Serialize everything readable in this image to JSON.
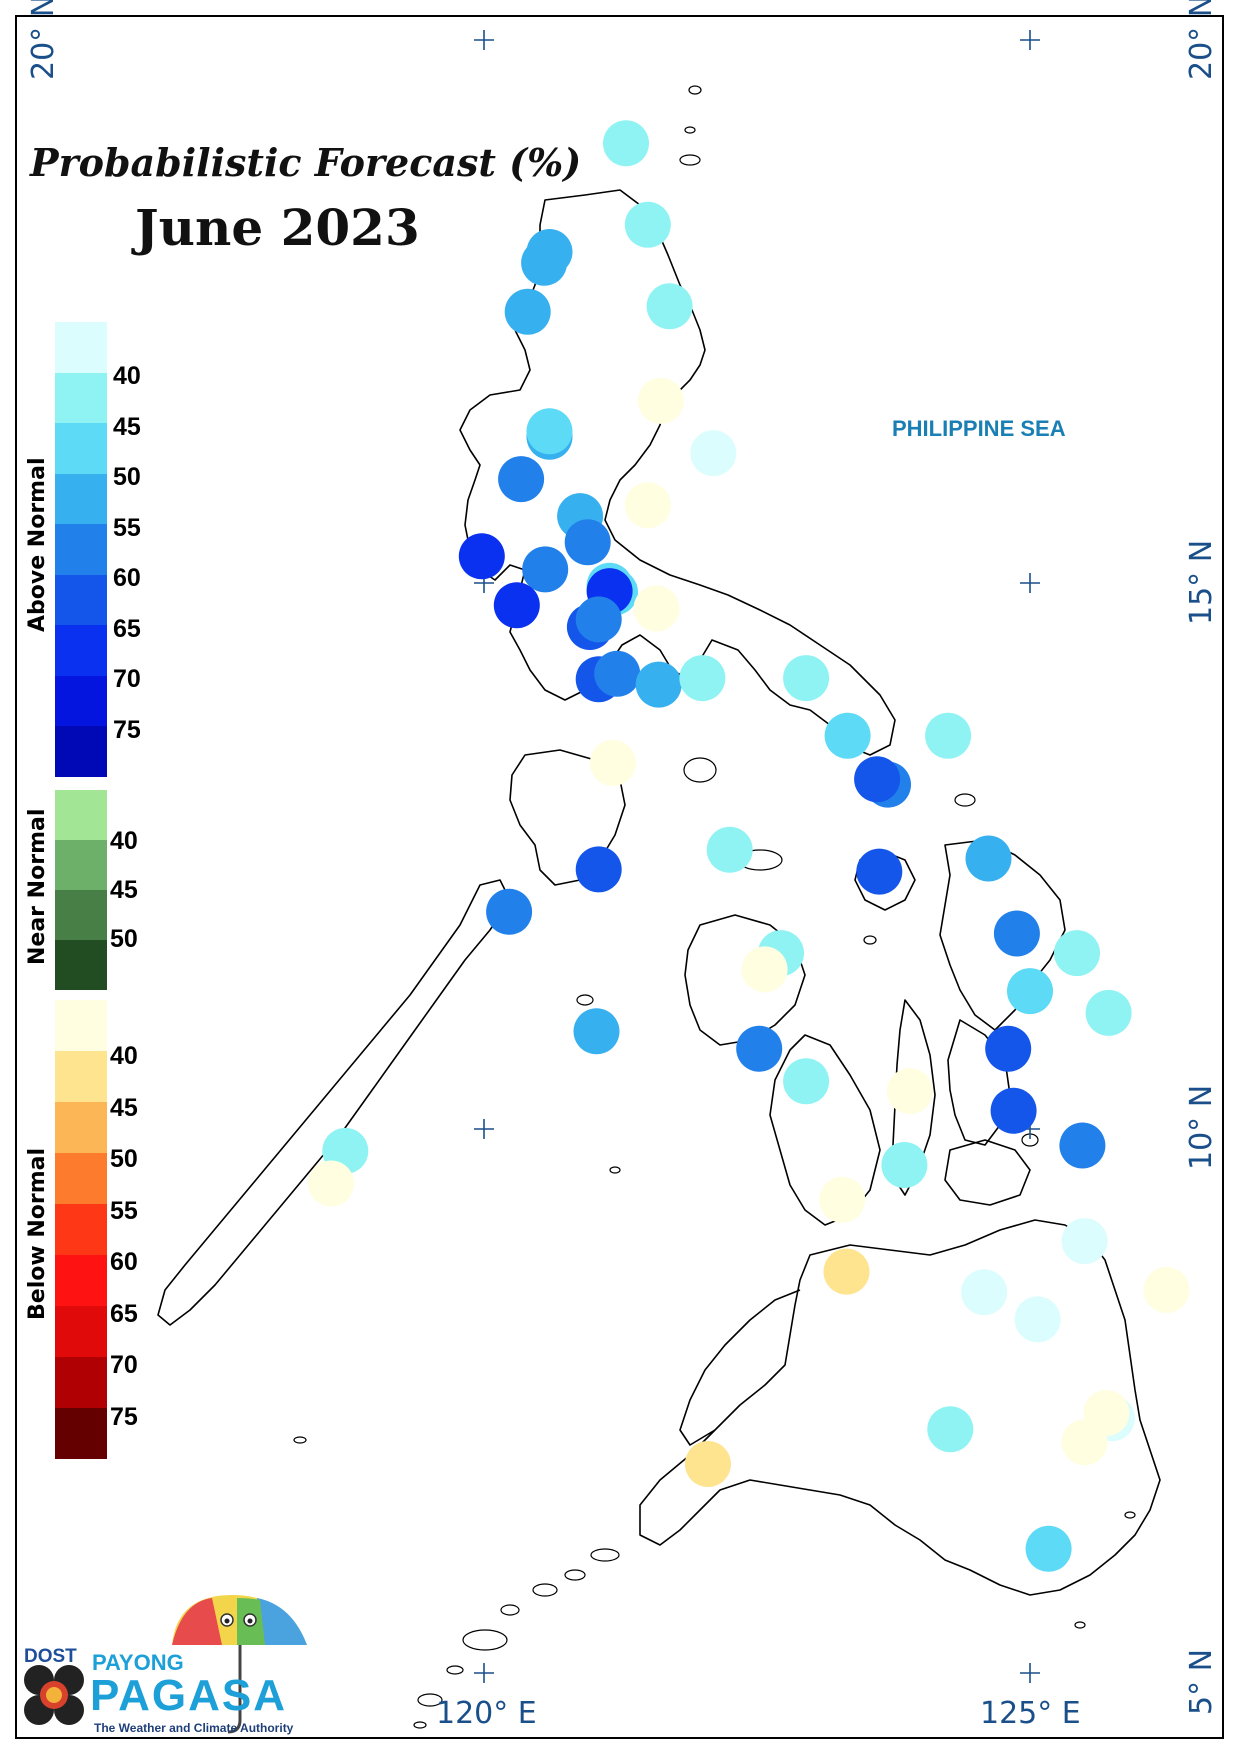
{
  "map": {
    "title": "Probabilistic Forecast (%)",
    "subtitle": "June 2023",
    "sea_label": "PHILIPPINE SEA",
    "coords": {
      "lat_top_left": "20° N",
      "lat_top_right": "20° N",
      "lat_15": "15° N",
      "lat_10": "10° N",
      "lat_5": "5° N",
      "lon_120": "120° E",
      "lon_125": "125° E"
    }
  },
  "legend": {
    "above": {
      "name": "Above Normal",
      "colors": [
        "#dcfdfd",
        "#8ff3f3",
        "#5ddaf6",
        "#37b0ef",
        "#2180ea",
        "#1556ea",
        "#0a30f0",
        "#0515e0",
        "#0009b5"
      ],
      "labels": [
        "40",
        "45",
        "50",
        "55",
        "60",
        "65",
        "70",
        "75"
      ]
    },
    "near": {
      "name": "Near Normal",
      "colors": [
        "#a1e595",
        "#6cb06a",
        "#477f47",
        "#224d22"
      ],
      "labels": [
        "40",
        "45",
        "50"
      ]
    },
    "below": {
      "name": "Below Normal",
      "colors": [
        "#fffee0",
        "#fee48e",
        "#fdb656",
        "#fd7b2d",
        "#fe3817",
        "#fe1312",
        "#e00a0a",
        "#b00004",
        "#650000"
      ],
      "labels": [
        "40",
        "45",
        "50",
        "55",
        "60",
        "65",
        "70",
        "75"
      ]
    }
  },
  "stations": [
    {
      "lon": 121.3,
      "lat": 19.05,
      "color": "#8ff3f3"
    },
    {
      "lon": 121.5,
      "lat": 18.3,
      "color": "#8ff3f3"
    },
    {
      "lon": 120.6,
      "lat": 18.05,
      "color": "#37b0ef"
    },
    {
      "lon": 120.55,
      "lat": 17.95,
      "color": "#37b0ef"
    },
    {
      "lon": 120.4,
      "lat": 17.5,
      "color": "#37b0ef"
    },
    {
      "lon": 121.7,
      "lat": 17.55,
      "color": "#8ff3f3"
    },
    {
      "lon": 121.62,
      "lat": 16.68,
      "color": "#fffee0"
    },
    {
      "lon": 120.6,
      "lat": 16.35,
      "color": "#37b0ef"
    },
    {
      "lon": 120.6,
      "lat": 16.4,
      "color": "#5ddaf6"
    },
    {
      "lon": 122.1,
      "lat": 16.2,
      "color": "#dcfdfd"
    },
    {
      "lon": 120.34,
      "lat": 15.96,
      "color": "#2180ea"
    },
    {
      "lon": 121.5,
      "lat": 15.72,
      "color": "#fffee0"
    },
    {
      "lon": 120.88,
      "lat": 15.62,
      "color": "#37b0ef"
    },
    {
      "lon": 120.95,
      "lat": 15.38,
      "color": "#2180ea"
    },
    {
      "lon": 119.98,
      "lat": 15.25,
      "color": "#0a30f0"
    },
    {
      "lon": 120.56,
      "lat": 15.13,
      "color": "#2180ea"
    },
    {
      "lon": 121.15,
      "lat": 14.98,
      "color": "#5ddaf6"
    },
    {
      "lon": 121.2,
      "lat": 14.92,
      "color": "#5ddaf6"
    },
    {
      "lon": 121.15,
      "lat": 14.93,
      "color": "#0a30f0"
    },
    {
      "lon": 120.3,
      "lat": 14.8,
      "color": "#0a30f0"
    },
    {
      "lon": 121.58,
      "lat": 14.77,
      "color": "#fffee0"
    },
    {
      "lon": 120.97,
      "lat": 14.6,
      "color": "#1556ea"
    },
    {
      "lon": 121.05,
      "lat": 14.67,
      "color": "#2180ea"
    },
    {
      "lon": 121.05,
      "lat": 14.12,
      "color": "#1556ea"
    },
    {
      "lon": 121.22,
      "lat": 14.17,
      "color": "#2180ea"
    },
    {
      "lon": 121.6,
      "lat": 14.07,
      "color": "#37b0ef"
    },
    {
      "lon": 122.0,
      "lat": 14.13,
      "color": "#8ff3f3"
    },
    {
      "lon": 122.95,
      "lat": 14.13,
      "color": "#8ff3f3"
    },
    {
      "lon": 123.33,
      "lat": 13.6,
      "color": "#5ddaf6"
    },
    {
      "lon": 124.25,
      "lat": 13.6,
      "color": "#8ff3f3"
    },
    {
      "lon": 121.18,
      "lat": 13.35,
      "color": "#fffee0"
    },
    {
      "lon": 123.7,
      "lat": 13.15,
      "color": "#2180ea"
    },
    {
      "lon": 123.6,
      "lat": 13.2,
      "color": "#1556ea"
    },
    {
      "lon": 122.25,
      "lat": 12.55,
      "color": "#8ff3f3"
    },
    {
      "lon": 121.05,
      "lat": 12.37,
      "color": "#1556ea"
    },
    {
      "lon": 123.62,
      "lat": 12.35,
      "color": "#1556ea"
    },
    {
      "lon": 124.62,
      "lat": 12.47,
      "color": "#37b0ef"
    },
    {
      "lon": 120.23,
      "lat": 11.98,
      "color": "#2180ea"
    },
    {
      "lon": 122.72,
      "lat": 11.6,
      "color": "#8ff3f3"
    },
    {
      "lon": 122.57,
      "lat": 11.45,
      "color": "#fffee0"
    },
    {
      "lon": 124.88,
      "lat": 11.78,
      "color": "#2180ea"
    },
    {
      "lon": 125.43,
      "lat": 11.6,
      "color": "#8ff3f3"
    },
    {
      "lon": 125.0,
      "lat": 11.25,
      "color": "#5ddaf6"
    },
    {
      "lon": 125.72,
      "lat": 11.05,
      "color": "#8ff3f3"
    },
    {
      "lon": 121.03,
      "lat": 10.88,
      "color": "#37b0ef"
    },
    {
      "lon": 122.52,
      "lat": 10.72,
      "color": "#2180ea"
    },
    {
      "lon": 124.8,
      "lat": 10.72,
      "color": "#1556ea"
    },
    {
      "lon": 122.95,
      "lat": 10.42,
      "color": "#8ff3f3"
    },
    {
      "lon": 123.9,
      "lat": 10.33,
      "color": "#fffee0"
    },
    {
      "lon": 124.85,
      "lat": 10.15,
      "color": "#1556ea"
    },
    {
      "lon": 125.48,
      "lat": 9.83,
      "color": "#2180ea"
    },
    {
      "lon": 118.73,
      "lat": 9.78,
      "color": "#8ff3f3"
    },
    {
      "lon": 118.6,
      "lat": 9.48,
      "color": "#fffee0"
    },
    {
      "lon": 123.85,
      "lat": 9.65,
      "color": "#8ff3f3"
    },
    {
      "lon": 123.28,
      "lat": 9.33,
      "color": "#fffee0"
    },
    {
      "lon": 125.5,
      "lat": 8.95,
      "color": "#dcfdfd"
    },
    {
      "lon": 123.32,
      "lat": 8.67,
      "color": "#fee48e"
    },
    {
      "lon": 124.58,
      "lat": 8.48,
      "color": "#dcfdfd"
    },
    {
      "lon": 125.07,
      "lat": 8.23,
      "color": "#dcfdfd"
    },
    {
      "lon": 126.25,
      "lat": 8.5,
      "color": "#fffee0"
    },
    {
      "lon": 125.75,
      "lat": 7.32,
      "color": "#dcfdfd"
    },
    {
      "lon": 125.7,
      "lat": 7.37,
      "color": "#fffee0"
    },
    {
      "lon": 125.5,
      "lat": 7.1,
      "color": "#fffee0"
    },
    {
      "lon": 124.27,
      "lat": 7.22,
      "color": "#8ff3f3"
    },
    {
      "lon": 122.05,
      "lat": 6.9,
      "color": "#fee48e"
    },
    {
      "lon": 125.17,
      "lat": 6.12,
      "color": "#5ddaf6"
    }
  ],
  "logo": {
    "dost": "DOST",
    "payong": "PAYONG",
    "pagasa": "PAGASA",
    "tagline": "The Weather and Climate Authority"
  }
}
